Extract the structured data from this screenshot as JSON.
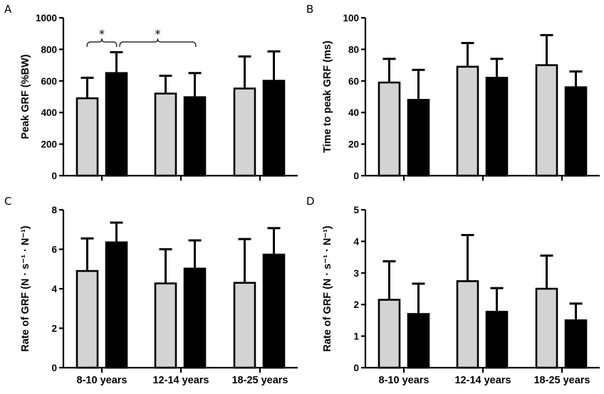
{
  "figure": {
    "categories": [
      "8-10 years",
      "12-14 years",
      "18-25 years"
    ],
    "colors": {
      "group1": "#d3d3d3",
      "group2": "#000000",
      "outline": "#000000"
    }
  },
  "chart_data": [
    {
      "type": "bar",
      "panel": "A",
      "title": "",
      "xlabel": "",
      "ylabel": "Peak GRF (%BW)",
      "ylim": [
        0,
        1000
      ],
      "yticks": [
        0,
        200,
        400,
        600,
        800,
        1000
      ],
      "show_category_labels": false,
      "categories": [
        "8-10 years",
        "12-14 years",
        "18-25 years"
      ],
      "series": [
        {
          "name": "grey",
          "values": [
            490,
            520,
            552
          ],
          "error_upper": [
            620,
            633,
            755
          ]
        },
        {
          "name": "black",
          "values": [
            650,
            497,
            601
          ],
          "error_upper": [
            782,
            650,
            787
          ]
        }
      ],
      "annotations": [
        {
          "text": "*",
          "type": "bracket",
          "from": "8-10 years grey",
          "to": "8-10 years black"
        },
        {
          "text": "*",
          "type": "bracket",
          "from": "8-10 years black",
          "to": "12-14 years grey"
        }
      ],
      "grid": false
    },
    {
      "type": "bar",
      "panel": "B",
      "title": "",
      "xlabel": "",
      "ylabel": "Time to peak GRF (ms)",
      "ylim": [
        0,
        100
      ],
      "yticks": [
        0,
        20,
        40,
        60,
        80,
        100
      ],
      "show_category_labels": false,
      "categories": [
        "8-10 years",
        "12-14 years",
        "18-25 years"
      ],
      "series": [
        {
          "name": "grey",
          "values": [
            59,
            69,
            70
          ],
          "error_upper": [
            74,
            84,
            89
          ]
        },
        {
          "name": "black",
          "values": [
            48,
            62,
            56
          ],
          "error_upper": [
            67,
            74,
            66
          ]
        }
      ],
      "annotations": [],
      "grid": false
    },
    {
      "type": "bar",
      "panel": "C",
      "title": "",
      "xlabel": "",
      "ylabel": "Rate of GRF (N · s⁻¹ · N⁻¹)",
      "ylim": [
        0,
        8
      ],
      "yticks": [
        0,
        2,
        4,
        6,
        8
      ],
      "show_category_labels": true,
      "categories": [
        "8-10 years",
        "12-14 years",
        "18-25 years"
      ],
      "series": [
        {
          "name": "grey",
          "values": [
            4.9,
            4.27,
            4.3
          ],
          "error_upper": [
            6.55,
            6.0,
            6.52
          ]
        },
        {
          "name": "black",
          "values": [
            6.35,
            5.02,
            5.73
          ],
          "error_upper": [
            7.35,
            6.45,
            7.07
          ]
        }
      ],
      "annotations": [],
      "grid": false
    },
    {
      "type": "bar",
      "panel": "D",
      "title": "",
      "xlabel": "",
      "ylabel": "Rate of GRF (N · s⁻¹ · N⁻¹)",
      "ylim": [
        0,
        5
      ],
      "yticks": [
        0,
        1,
        2,
        3,
        4,
        5
      ],
      "show_category_labels": true,
      "categories": [
        "8-10 years",
        "12-14 years",
        "18-25 years"
      ],
      "series": [
        {
          "name": "grey",
          "values": [
            2.15,
            2.74,
            2.5
          ],
          "error_upper": [
            3.37,
            4.2,
            3.55
          ]
        },
        {
          "name": "black",
          "values": [
            1.7,
            1.77,
            1.5
          ],
          "error_upper": [
            2.66,
            2.52,
            2.03
          ]
        }
      ],
      "annotations": [],
      "grid": false
    }
  ]
}
